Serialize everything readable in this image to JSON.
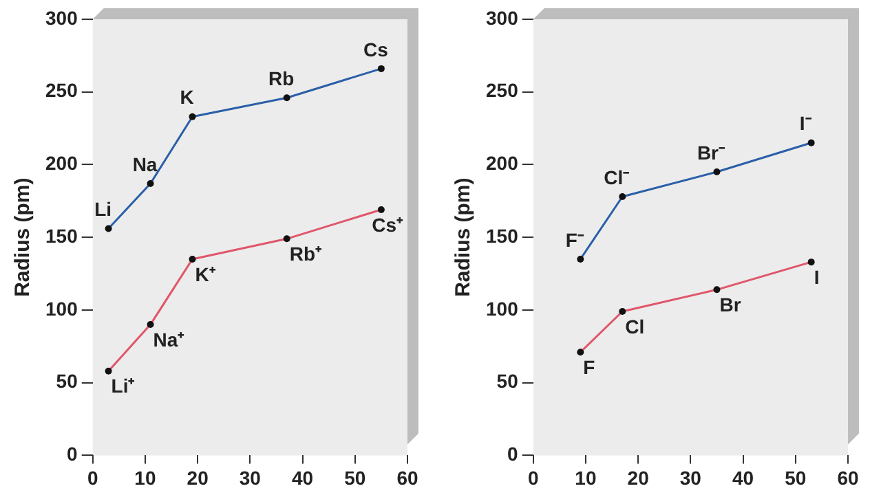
{
  "chart_data": [
    {
      "type": "line",
      "ylabel": "Radius (pm)",
      "xlim": [
        0,
        60
      ],
      "xticks": [
        0,
        10,
        20,
        30,
        40,
        50,
        60
      ],
      "ylim": [
        0,
        300
      ],
      "yticks": [
        0,
        50,
        100,
        150,
        200,
        250,
        300
      ],
      "grid": false,
      "legend": false,
      "marker": "circle",
      "line_style": "solid",
      "series": [
        {
          "color": "#2a5fa8",
          "x": [
            3,
            11,
            19,
            37,
            55
          ],
          "values": [
            156,
            187,
            233,
            246,
            266
          ]
        },
        {
          "color": "#e0566a",
          "x": [
            3,
            11,
            19,
            37,
            55
          ],
          "values": [
            58,
            90,
            135,
            149,
            169
          ]
        }
      ],
      "annotations": [
        {
          "text": "Li",
          "x": 3,
          "y": 156
        },
        {
          "text": "Na",
          "x": 11,
          "y": 187
        },
        {
          "text": "K",
          "x": 19,
          "y": 233
        },
        {
          "text": "Rb",
          "x": 37,
          "y": 246
        },
        {
          "text": "Cs",
          "x": 55,
          "y": 266
        },
        {
          "text": "Li⁺",
          "x": 3,
          "y": 58
        },
        {
          "text": "Na⁺",
          "x": 11,
          "y": 90
        },
        {
          "text": "K⁺",
          "x": 19,
          "y": 135
        },
        {
          "text": "Rb⁺",
          "x": 37,
          "y": 149
        },
        {
          "text": "Cs⁺",
          "x": 55,
          "y": 169
        }
      ]
    },
    {
      "type": "line",
      "ylabel": "Radius (pm)",
      "xlim": [
        0,
        60
      ],
      "xticks": [
        0,
        10,
        20,
        30,
        40,
        50,
        60
      ],
      "ylim": [
        0,
        300
      ],
      "yticks": [
        0,
        50,
        100,
        150,
        200,
        250,
        300
      ],
      "grid": false,
      "legend": false,
      "marker": "circle",
      "line_style": "solid",
      "series": [
        {
          "color": "#2a5fa8",
          "x": [
            9,
            17,
            35,
            53
          ],
          "values": [
            135,
            178,
            195,
            215
          ]
        },
        {
          "color": "#e0566a",
          "x": [
            9,
            17,
            35,
            53
          ],
          "values": [
            71,
            99,
            114,
            133
          ]
        }
      ],
      "annotations": [
        {
          "text": "F⁻",
          "x": 9,
          "y": 135
        },
        {
          "text": "Cl⁻",
          "x": 17,
          "y": 178
        },
        {
          "text": "Br⁻",
          "x": 35,
          "y": 195
        },
        {
          "text": "I⁻",
          "x": 53,
          "y": 215
        },
        {
          "text": "F",
          "x": 9,
          "y": 71
        },
        {
          "text": "Cl",
          "x": 17,
          "y": 99
        },
        {
          "text": "Br",
          "x": 35,
          "y": 114
        },
        {
          "text": "I",
          "x": 53,
          "y": 133
        }
      ]
    }
  ]
}
